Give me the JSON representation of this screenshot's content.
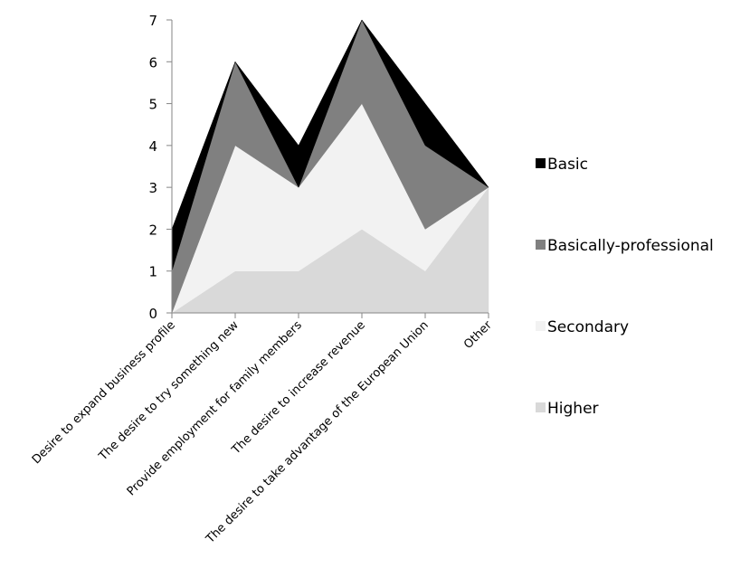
{
  "chart_data": {
    "type": "area",
    "stacked": true,
    "categories": [
      "Desire to expand business profile",
      "The desire to try something new",
      "Provide employment for family members",
      "The desire to increase revenue",
      "The desire to take advantage of the European Union",
      "Other"
    ],
    "series": [
      {
        "name": "Higher",
        "values": [
          0,
          1,
          1,
          2,
          1,
          3
        ],
        "color": "#d9d9d9"
      },
      {
        "name": "Secondary",
        "values": [
          0,
          3,
          2,
          3,
          1,
          0
        ],
        "color": "#f2f2f2"
      },
      {
        "name": "Basically-professional",
        "values": [
          1,
          2,
          0,
          2,
          2,
          0
        ],
        "color": "#808080"
      },
      {
        "name": "Basic",
        "values": [
          1,
          0,
          1,
          0,
          1,
          0
        ],
        "color": "#000000"
      }
    ],
    "legend_order": [
      "Basic",
      "Basically-professional",
      "Secondary",
      "Higher"
    ],
    "ylim": [
      0,
      7
    ],
    "yticks": [
      "0",
      "1",
      "2",
      "3",
      "4",
      "5",
      "6",
      "7"
    ],
    "grid": false,
    "legend_position": "right",
    "title": "",
    "xlabel": "",
    "ylabel": ""
  }
}
